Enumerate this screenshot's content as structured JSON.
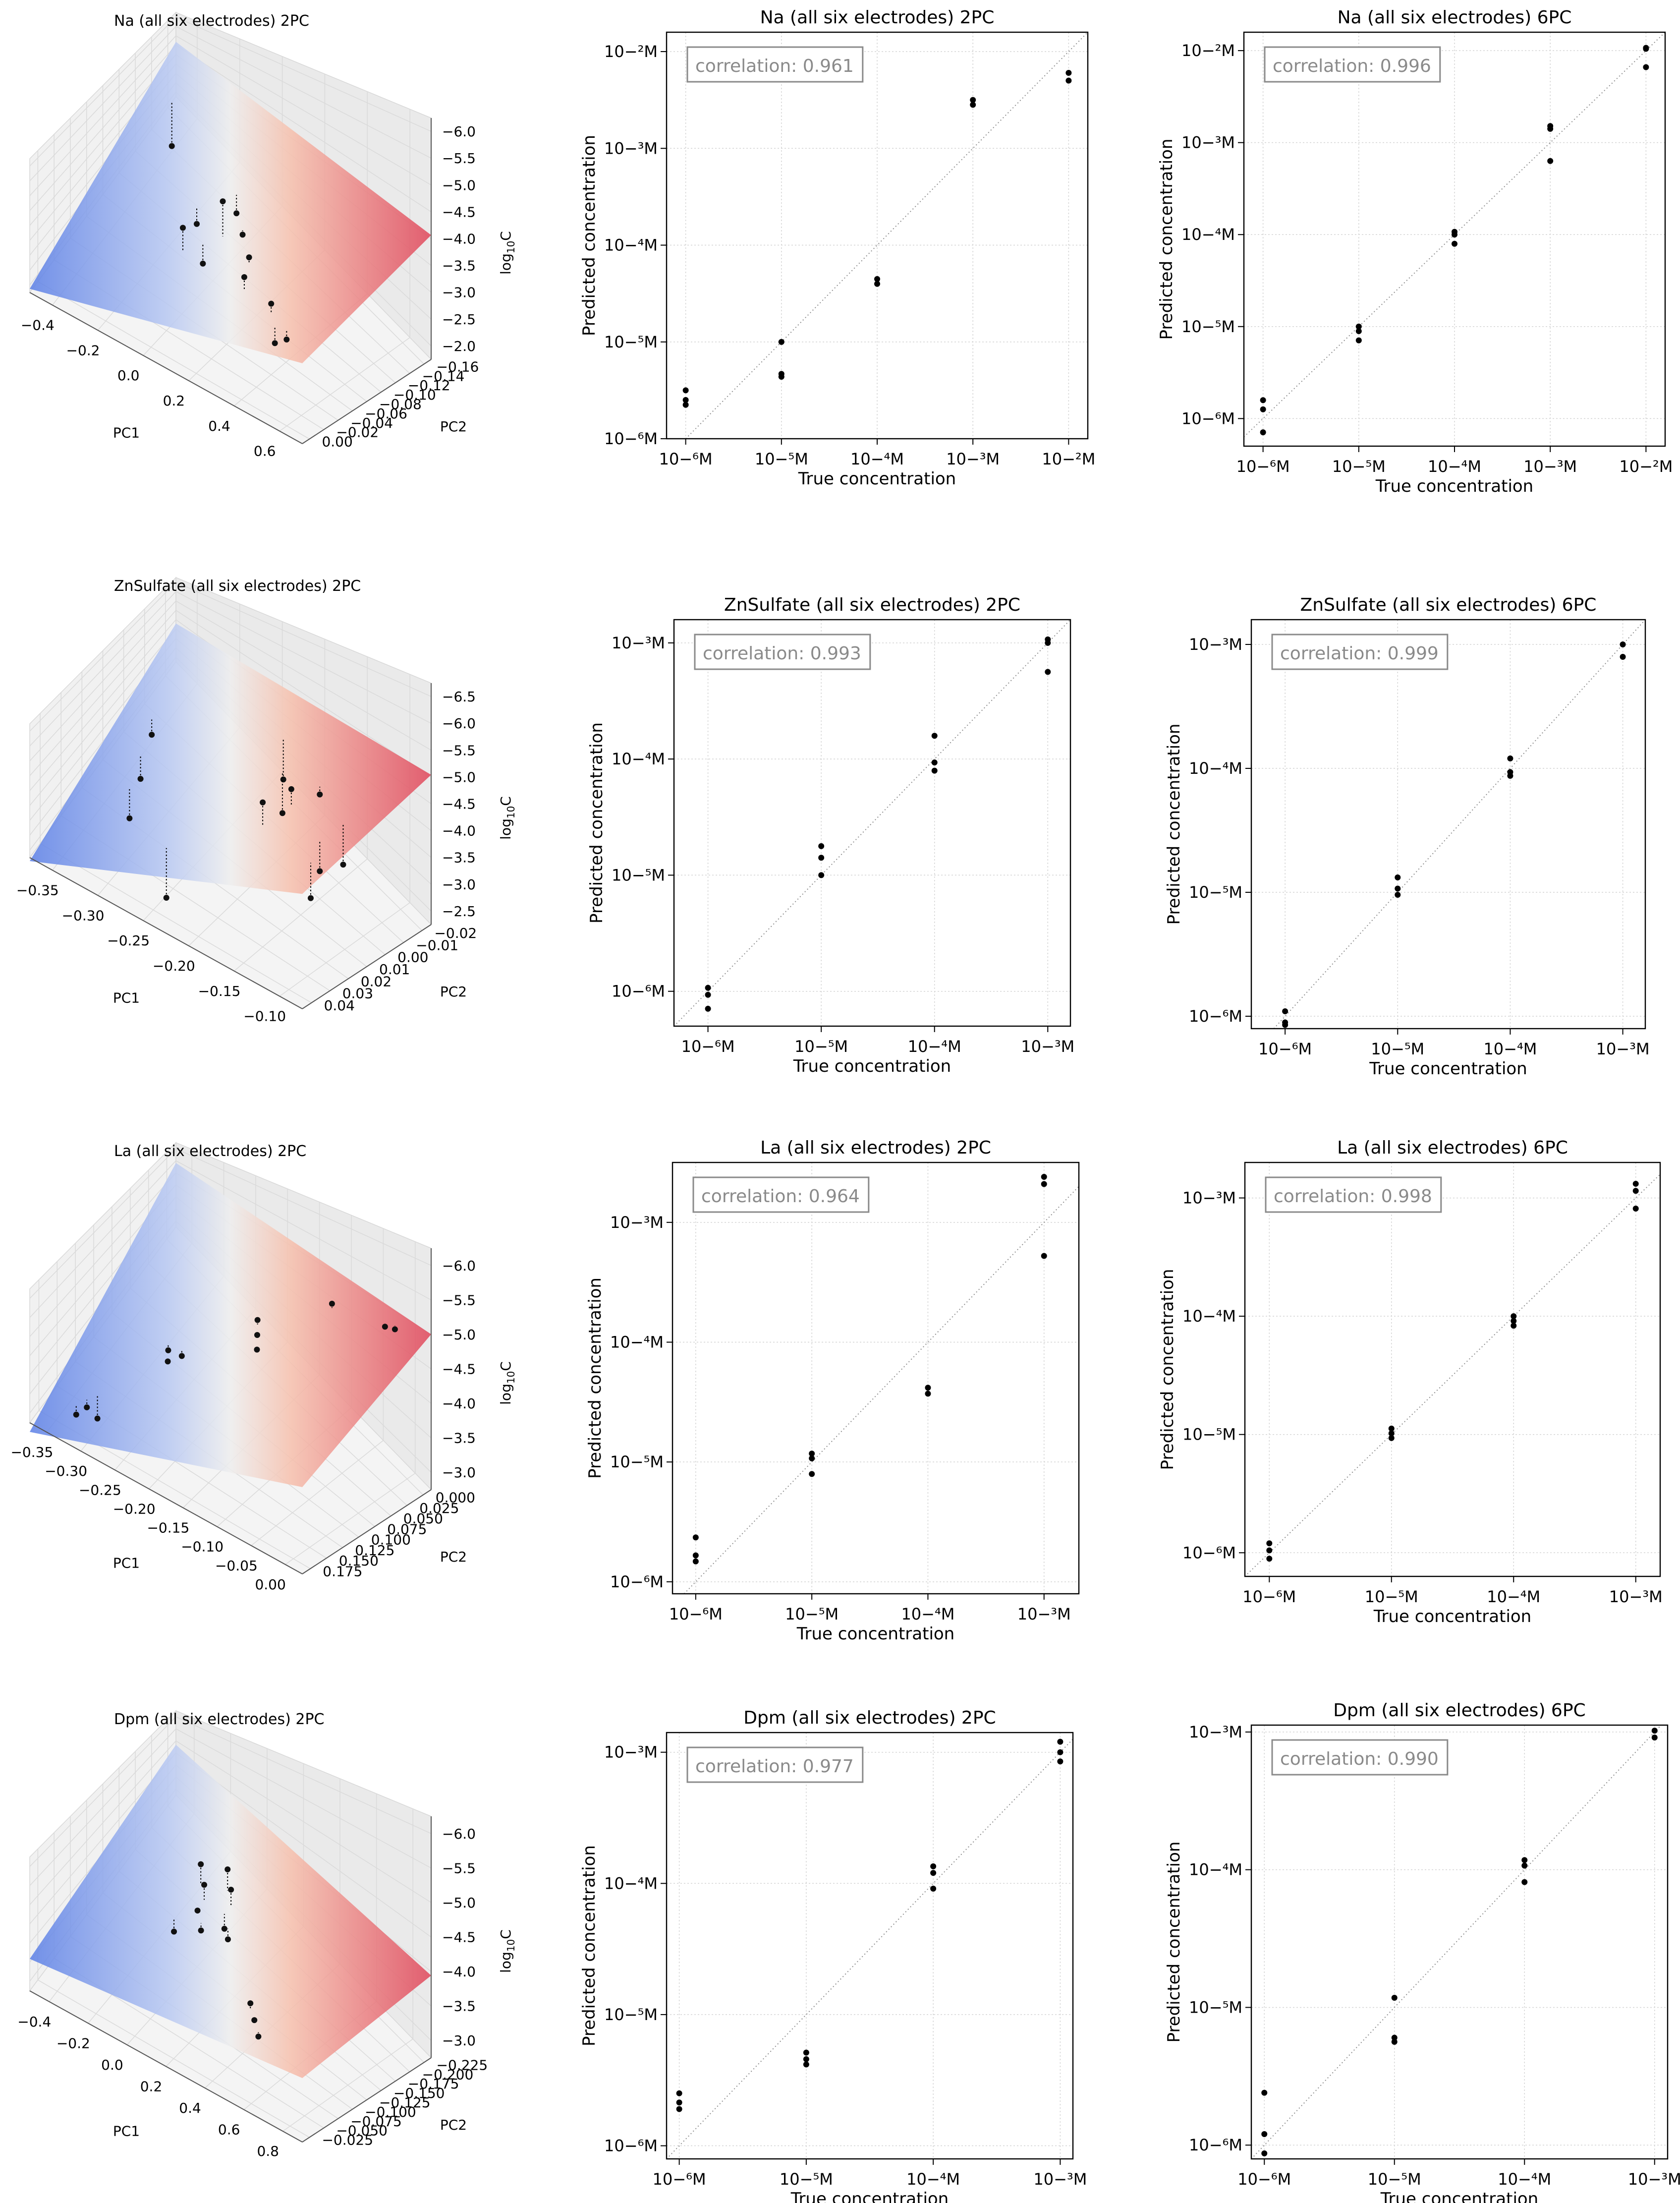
{
  "figure": {
    "ylabel_log": "log",
    "ylabel_sub": "10",
    "ylabel_var": "C"
  },
  "chart_data": [
    {
      "id": "na-3d",
      "type": "scatter",
      "subtype": "3d-surface",
      "title": "Na  (all six electrodes)  2PC",
      "xlabel": "PC1",
      "ylabel": "PC2",
      "zlabel": "log10C",
      "xticks": [
        "−0.4",
        "−0.2",
        "0.0",
        "0.2",
        "0.4",
        "0.6"
      ],
      "yticks": [
        "0.00",
        "−0.02",
        "−0.04",
        "−0.06",
        "−0.08",
        "−0.10",
        "−0.12",
        "−0.14",
        "−0.16"
      ],
      "zticks": [
        "−2.0",
        "−2.5",
        "−3.0",
        "−3.5",
        "−4.0",
        "−4.5",
        "−5.0",
        "−5.5",
        "−6.0"
      ],
      "xrange": [
        -0.45,
        0.7
      ],
      "yrange": [
        -0.165,
        0.0
      ],
      "zrange": [
        -6.0,
        -2.0
      ],
      "plane": {
        "z00": -5.9,
        "z10": -3.8,
        "z01": -4.5,
        "z11": -2.6
      },
      "points": [
        [
          -0.35,
          -0.03,
          -5.8
        ],
        [
          -0.05,
          -0.08,
          -4.9
        ],
        [
          0.05,
          -0.06,
          -4.6
        ],
        [
          0.0,
          -0.11,
          -4.0
        ],
        [
          0.1,
          -0.09,
          -3.3
        ],
        [
          0.3,
          -0.12,
          -3.8
        ],
        [
          0.15,
          -0.08,
          -4.2
        ],
        [
          0.25,
          -0.1,
          -3.9
        ],
        [
          0.45,
          -0.13,
          -3.7
        ],
        [
          0.55,
          -0.14,
          -4.1
        ],
        [
          0.5,
          -0.14,
          -4.4
        ],
        [
          0.05,
          -0.1,
          -5.0
        ]
      ],
      "colors": {
        "low": "#4a6fdc",
        "high": "#e0465a"
      }
    },
    {
      "id": "na-2pc",
      "type": "scatter",
      "title": "Na  (all six electrodes)  2PC",
      "xlabel": "True concentration",
      "ylabel": "Predicted concentration",
      "xdecades": [
        -6,
        -5,
        -4,
        -3,
        -2
      ],
      "ydecades": [
        -6,
        -5,
        -4,
        -3,
        -2
      ],
      "xlim": [
        -6.2,
        -1.8
      ],
      "ylim": [
        -6.0,
        -1.8
      ],
      "annotation": "correlation: 0.961",
      "points": [
        [
          -6,
          -5.6
        ],
        [
          -6,
          -5.65
        ],
        [
          -6,
          -5.5
        ],
        [
          -5,
          -5.36
        ],
        [
          -5,
          -5.33
        ],
        [
          -5,
          -5.0
        ],
        [
          -4,
          -4.4
        ],
        [
          -4,
          -4.35
        ],
        [
          -3,
          -2.55
        ],
        [
          -3,
          -2.5
        ],
        [
          -2,
          -2.3
        ],
        [
          -2,
          -2.22
        ]
      ]
    },
    {
      "id": "na-6pc",
      "type": "scatter",
      "title": "Na  (all six electrodes)  6PC",
      "xlabel": "True concentration",
      "ylabel": "Predicted concentration",
      "xdecades": [
        -6,
        -5,
        -4,
        -3,
        -2
      ],
      "ydecades": [
        -6,
        -5,
        -4,
        -3,
        -2
      ],
      "xlim": [
        -6.2,
        -1.8
      ],
      "ylim": [
        -6.3,
        -1.8
      ],
      "annotation": "correlation: 0.996",
      "points": [
        [
          -6,
          -6.15
        ],
        [
          -6,
          -5.9
        ],
        [
          -6,
          -5.8
        ],
        [
          -5,
          -5.15
        ],
        [
          -5,
          -5.05
        ],
        [
          -5,
          -5.0
        ],
        [
          -4,
          -4.1
        ],
        [
          -4,
          -4.0
        ],
        [
          -4,
          -3.97
        ],
        [
          -3,
          -3.2
        ],
        [
          -3,
          -2.85
        ],
        [
          -3,
          -2.82
        ],
        [
          -2,
          -2.18
        ],
        [
          -2,
          -1.98
        ],
        [
          -2,
          -1.97
        ]
      ]
    },
    {
      "id": "zn-3d",
      "type": "scatter",
      "subtype": "3d-surface",
      "title": "ZnSulfate  (all six electrodes)  2PC",
      "xlabel": "PC1",
      "ylabel": "PC2",
      "zlabel": "log10C",
      "xticks": [
        "−0.35",
        "−0.30",
        "−0.25",
        "−0.20",
        "−0.15",
        "−0.10"
      ],
      "yticks": [
        "0.04",
        "0.03",
        "0.02",
        "0.01",
        "0.00",
        "−0.01",
        "−0.02"
      ],
      "zticks": [
        "−2.5",
        "−3.0",
        "−3.5",
        "−4.0",
        "−4.5",
        "−5.0",
        "−5.5",
        "−6.0",
        "−6.5"
      ],
      "xrange": [
        -0.37,
        -0.09
      ],
      "yrange": [
        -0.025,
        0.045
      ],
      "zrange": [
        -6.5,
        -2.3
      ],
      "plane": {
        "z00": -6.6,
        "z10": -3.2,
        "z01": -5.4,
        "z11": -2.2
      },
      "points": [
        [
          -0.34,
          0.02,
          -5.9
        ],
        [
          -0.33,
          0.01,
          -6.2
        ],
        [
          -0.32,
          0.0,
          -6.4
        ],
        [
          -0.22,
          0.03,
          -5.0
        ],
        [
          -0.2,
          0.02,
          -4.95
        ],
        [
          -0.18,
          0.0,
          -3.2
        ],
        [
          -0.17,
          0.01,
          -3.1
        ],
        [
          -0.16,
          0.02,
          -3.5
        ],
        [
          -0.12,
          0.0,
          -4.0
        ],
        [
          -0.11,
          -0.01,
          -4.2
        ],
        [
          -0.115,
          0.01,
          -4.1
        ],
        [
          -0.25,
          -0.015,
          -6.4
        ]
      ],
      "colors": {
        "low": "#4a6fdc",
        "high": "#e0465a"
      }
    },
    {
      "id": "zn-2pc",
      "type": "scatter",
      "title": "ZnSulfate  (all six electrodes)  2PC",
      "xlabel": "True concentration",
      "ylabel": "Predicted concentration",
      "xdecades": [
        -6,
        -5,
        -4,
        -3
      ],
      "ydecades": [
        -6,
        -5,
        -4,
        -3
      ],
      "xlim": [
        -6.3,
        -2.8
      ],
      "ylim": [
        -6.3,
        -2.8
      ],
      "annotation": "correlation: 0.993",
      "points": [
        [
          -6,
          -6.15
        ],
        [
          -6,
          -6.03
        ],
        [
          -6,
          -5.97
        ],
        [
          -5,
          -5.0
        ],
        [
          -5,
          -4.85
        ],
        [
          -5,
          -4.75
        ],
        [
          -4,
          -4.1
        ],
        [
          -4,
          -4.03
        ],
        [
          -4,
          -3.8
        ],
        [
          -3,
          -3.25
        ],
        [
          -3,
          -3.0
        ],
        [
          -3,
          -2.97
        ]
      ]
    },
    {
      "id": "zn-6pc",
      "type": "scatter",
      "title": "ZnSulfate  (all six electrodes)  6PC",
      "xlabel": "True concentration",
      "ylabel": "Predicted concentration",
      "xdecades": [
        -6,
        -5,
        -4,
        -3
      ],
      "ydecades": [
        -6,
        -5,
        -4,
        -3
      ],
      "xlim": [
        -6.3,
        -2.8
      ],
      "ylim": [
        -6.1,
        -2.8
      ],
      "annotation": "correlation: 0.999",
      "points": [
        [
          -6,
          -6.07
        ],
        [
          -6,
          -6.05
        ],
        [
          -6,
          -5.96
        ],
        [
          -5,
          -5.02
        ],
        [
          -5,
          -4.97
        ],
        [
          -5,
          -4.88
        ],
        [
          -4,
          -4.06
        ],
        [
          -4,
          -4.03
        ],
        [
          -4,
          -3.92
        ],
        [
          -3,
          -3.1
        ],
        [
          -3,
          -3.0
        ]
      ]
    },
    {
      "id": "la-3d",
      "type": "scatter",
      "subtype": "3d-surface",
      "title": "La  (all six electrodes)  2PC",
      "xlabel": "PC1",
      "ylabel": "PC2",
      "zlabel": "log10C",
      "xticks": [
        "−0.35",
        "−0.30",
        "−0.25",
        "−0.20",
        "−0.15",
        "−0.10",
        "−0.05",
        "0.00"
      ],
      "yticks": [
        "0.175",
        "0.150",
        "0.125",
        "0.100",
        "0.075",
        "0.050",
        "0.025",
        "0.000"
      ],
      "zticks": [
        "−3.0",
        "−3.5",
        "−4.0",
        "−4.5",
        "−5.0",
        "−5.5",
        "−6.0"
      ],
      "xrange": [
        -0.37,
        0.02
      ],
      "yrange": [
        -0.005,
        0.19
      ],
      "zrange": [
        -6.0,
        -2.8
      ],
      "plane": {
        "z00": -6.2,
        "z10": -4.1,
        "z01": -4.6,
        "z11": -2.6
      },
      "points": [
        [
          -0.33,
          0.02,
          -6.0
        ],
        [
          -0.32,
          0.025,
          -5.85
        ],
        [
          -0.31,
          0.03,
          -6.1
        ],
        [
          -0.26,
          0.08,
          -5.05
        ],
        [
          -0.24,
          0.08,
          -4.95
        ],
        [
          -0.25,
          0.07,
          -5.0
        ],
        [
          -0.17,
          0.12,
          -4.0
        ],
        [
          -0.16,
          0.11,
          -4.05
        ],
        [
          -0.1,
          0.16,
          -3.3
        ],
        [
          -0.03,
          0.17,
          -2.95
        ],
        [
          -0.02,
          0.175,
          -2.92
        ],
        [
          -0.15,
          0.1,
          -4.1
        ]
      ],
      "colors": {
        "low": "#4a6fdc",
        "high": "#e0465a"
      }
    },
    {
      "id": "la-2pc",
      "type": "scatter",
      "title": "La  (all six electrodes)  2PC",
      "xlabel": "True concentration",
      "ylabel": "Predicted concentration",
      "xdecades": [
        -6,
        -5,
        -4,
        -3
      ],
      "ydecades": [
        -6,
        -5,
        -4,
        -3
      ],
      "xlim": [
        -6.2,
        -2.7
      ],
      "ylim": [
        -6.1,
        -2.5
      ],
      "annotation": "correlation: 0.964",
      "points": [
        [
          -6,
          -5.83
        ],
        [
          -6,
          -5.78
        ],
        [
          -6,
          -5.63
        ],
        [
          -5,
          -5.1
        ],
        [
          -5,
          -4.97
        ],
        [
          -5,
          -4.93
        ],
        [
          -4,
          -4.43
        ],
        [
          -4,
          -4.38
        ],
        [
          -3,
          -3.28
        ],
        [
          -3,
          -2.68
        ],
        [
          -3,
          -2.62
        ]
      ]
    },
    {
      "id": "la-6pc",
      "type": "scatter",
      "title": "La  (all six electrodes)  6PC",
      "xlabel": "True concentration",
      "ylabel": "Predicted concentration",
      "xdecades": [
        -6,
        -5,
        -4,
        -3
      ],
      "ydecades": [
        -6,
        -5,
        -4,
        -3
      ],
      "xlim": [
        -6.2,
        -2.8
      ],
      "ylim": [
        -6.2,
        -2.7
      ],
      "annotation": "correlation: 0.998",
      "points": [
        [
          -6,
          -6.05
        ],
        [
          -6,
          -5.98
        ],
        [
          -6,
          -5.92
        ],
        [
          -5,
          -5.03
        ],
        [
          -5,
          -4.99
        ],
        [
          -5,
          -4.95
        ],
        [
          -4,
          -4.08
        ],
        [
          -4,
          -4.04
        ],
        [
          -4,
          -4.0
        ],
        [
          -3,
          -3.09
        ],
        [
          -3,
          -2.94
        ],
        [
          -3,
          -2.88
        ]
      ]
    },
    {
      "id": "dpm-3d",
      "type": "scatter",
      "subtype": "3d-surface",
      "title": "Dpm  (all six electrodes)  2PC",
      "xlabel": "PC1",
      "ylabel": "PC2",
      "zlabel": "log10C",
      "xticks": [
        "−0.4",
        "−0.2",
        "0.0",
        "0.2",
        "0.4",
        "0.6",
        "0.8"
      ],
      "yticks": [
        "−0.025",
        "−0.050",
        "−0.075",
        "−0.100",
        "−0.125",
        "−0.150",
        "−0.175",
        "−0.200",
        "−0.225"
      ],
      "zticks": [
        "−3.0",
        "−3.5",
        "−4.0",
        "−4.5",
        "−5.0",
        "−5.5",
        "−6.0"
      ],
      "xrange": [
        -0.45,
        0.85
      ],
      "yrange": [
        -0.23,
        -0.02
      ],
      "zrange": [
        -6.0,
        -2.8
      ],
      "plane": {
        "z00": -5.3,
        "z10": -4.6,
        "z01": -4.9,
        "z11": -4.2
      },
      "points": [
        [
          -0.05,
          -0.1,
          -4.4
        ],
        [
          0.0,
          -0.11,
          -4.5
        ],
        [
          0.05,
          -0.09,
          -4.3
        ],
        [
          0.1,
          -0.1,
          -4.4
        ],
        [
          0.0,
          -0.12,
          -4.9
        ],
        [
          0.05,
          -0.13,
          -5.0
        ],
        [
          -0.05,
          -0.14,
          -5.2
        ],
        [
          0.15,
          -0.12,
          -5.0
        ],
        [
          0.45,
          -0.18,
          -4.6
        ],
        [
          0.5,
          -0.19,
          -4.7
        ],
        [
          0.55,
          -0.2,
          -4.8
        ],
        [
          0.1,
          -0.11,
          -5.1
        ]
      ],
      "colors": {
        "low": "#4a6fdc",
        "high": "#e0465a"
      }
    },
    {
      "id": "dpm-2pc",
      "type": "scatter",
      "title": "Dpm  (all six electrodes)  2PC",
      "xlabel": "True concentration",
      "ylabel": "Predicted concentration",
      "xdecades": [
        -6,
        -5,
        -4,
        -3
      ],
      "ydecades": [
        -6,
        -5,
        -4,
        -3
      ],
      "xlim": [
        -6.1,
        -2.9
      ],
      "ylim": [
        -6.1,
        -2.85
      ],
      "annotation": "correlation: 0.977",
      "points": [
        [
          -6,
          -5.72
        ],
        [
          -6,
          -5.67
        ],
        [
          -6,
          -5.6
        ],
        [
          -5,
          -5.38
        ],
        [
          -5,
          -5.34
        ],
        [
          -5,
          -5.29
        ],
        [
          -4,
          -4.04
        ],
        [
          -4,
          -3.92
        ],
        [
          -4,
          -3.87
        ],
        [
          -3,
          -3.07
        ],
        [
          -3,
          -3.0
        ],
        [
          -3,
          -2.92
        ]
      ]
    },
    {
      "id": "dpm-6pc",
      "type": "scatter",
      "title": "Dpm  (all six electrodes)  6PC",
      "xlabel": "True concentration",
      "ylabel": "Predicted concentration",
      "xdecades": [
        -6,
        -5,
        -4,
        -3
      ],
      "ydecades": [
        -6,
        -5,
        -4,
        -3
      ],
      "xlim": [
        -6.1,
        -2.9
      ],
      "ylim": [
        -6.1,
        -2.95
      ],
      "annotation": "correlation: 0.990",
      "points": [
        [
          -6,
          -6.06
        ],
        [
          -6,
          -5.92
        ],
        [
          -6,
          -5.62
        ],
        [
          -5,
          -5.25
        ],
        [
          -5,
          -5.22
        ],
        [
          -5,
          -4.93
        ],
        [
          -4,
          -4.09
        ],
        [
          -4,
          -3.97
        ],
        [
          -4,
          -3.93
        ],
        [
          -3,
          -3.04
        ],
        [
          -3,
          -2.99
        ]
      ]
    }
  ]
}
